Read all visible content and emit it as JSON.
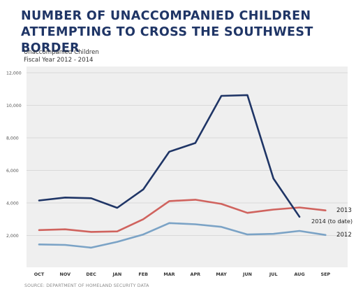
{
  "header": {
    "title_line1": "NUMBER OF UNACCOMPANIED CHILDREN",
    "title_line2": "ATTEMPTING TO CROSS THE SOUTHWEST BORDER",
    "subtitle_line1": "Unaccompanied Children",
    "subtitle_line2": "Fiscal Year 2012 - 2014"
  },
  "footer": {
    "source": "SOURCE: DEPARTMENT OF HOMELAND SECURITY DATA"
  },
  "chart_data": {
    "type": "line",
    "title": "NUMBER OF UNACCOMPANIED CHILDREN ATTEMPTING TO CROSS THE SOUTHWEST BORDER",
    "subtitle": "Unaccompanied Children Fiscal Year 2012 - 2014",
    "categories": [
      "OCT",
      "NOV",
      "DEC",
      "JAN",
      "FEB",
      "MAR",
      "APR",
      "MAY",
      "JUN",
      "JUL",
      "AUG",
      "SEP"
    ],
    "yticks": [
      "2,000",
      "4,000",
      "6,000",
      "8,000",
      "10,000",
      "12,000"
    ],
    "ylim": [
      0,
      12000
    ],
    "grid": true,
    "series": [
      {
        "name": "2014 (to date)",
        "color": "#1f3566",
        "values": [
          4150,
          4330,
          4290,
          3700,
          4830,
          7150,
          7680,
          10580,
          10630,
          5500,
          3150,
          null
        ]
      },
      {
        "name": "2013",
        "color": "#d0635e",
        "values": [
          2330,
          2380,
          2220,
          2250,
          3000,
          4110,
          4200,
          3940,
          3390,
          3590,
          3720,
          3540
        ]
      },
      {
        "name": "2012",
        "color": "#7ba3c6",
        "values": [
          1450,
          1420,
          1250,
          1610,
          2060,
          2760,
          2690,
          2530,
          2060,
          2100,
          2280,
          2030
        ]
      }
    ]
  }
}
